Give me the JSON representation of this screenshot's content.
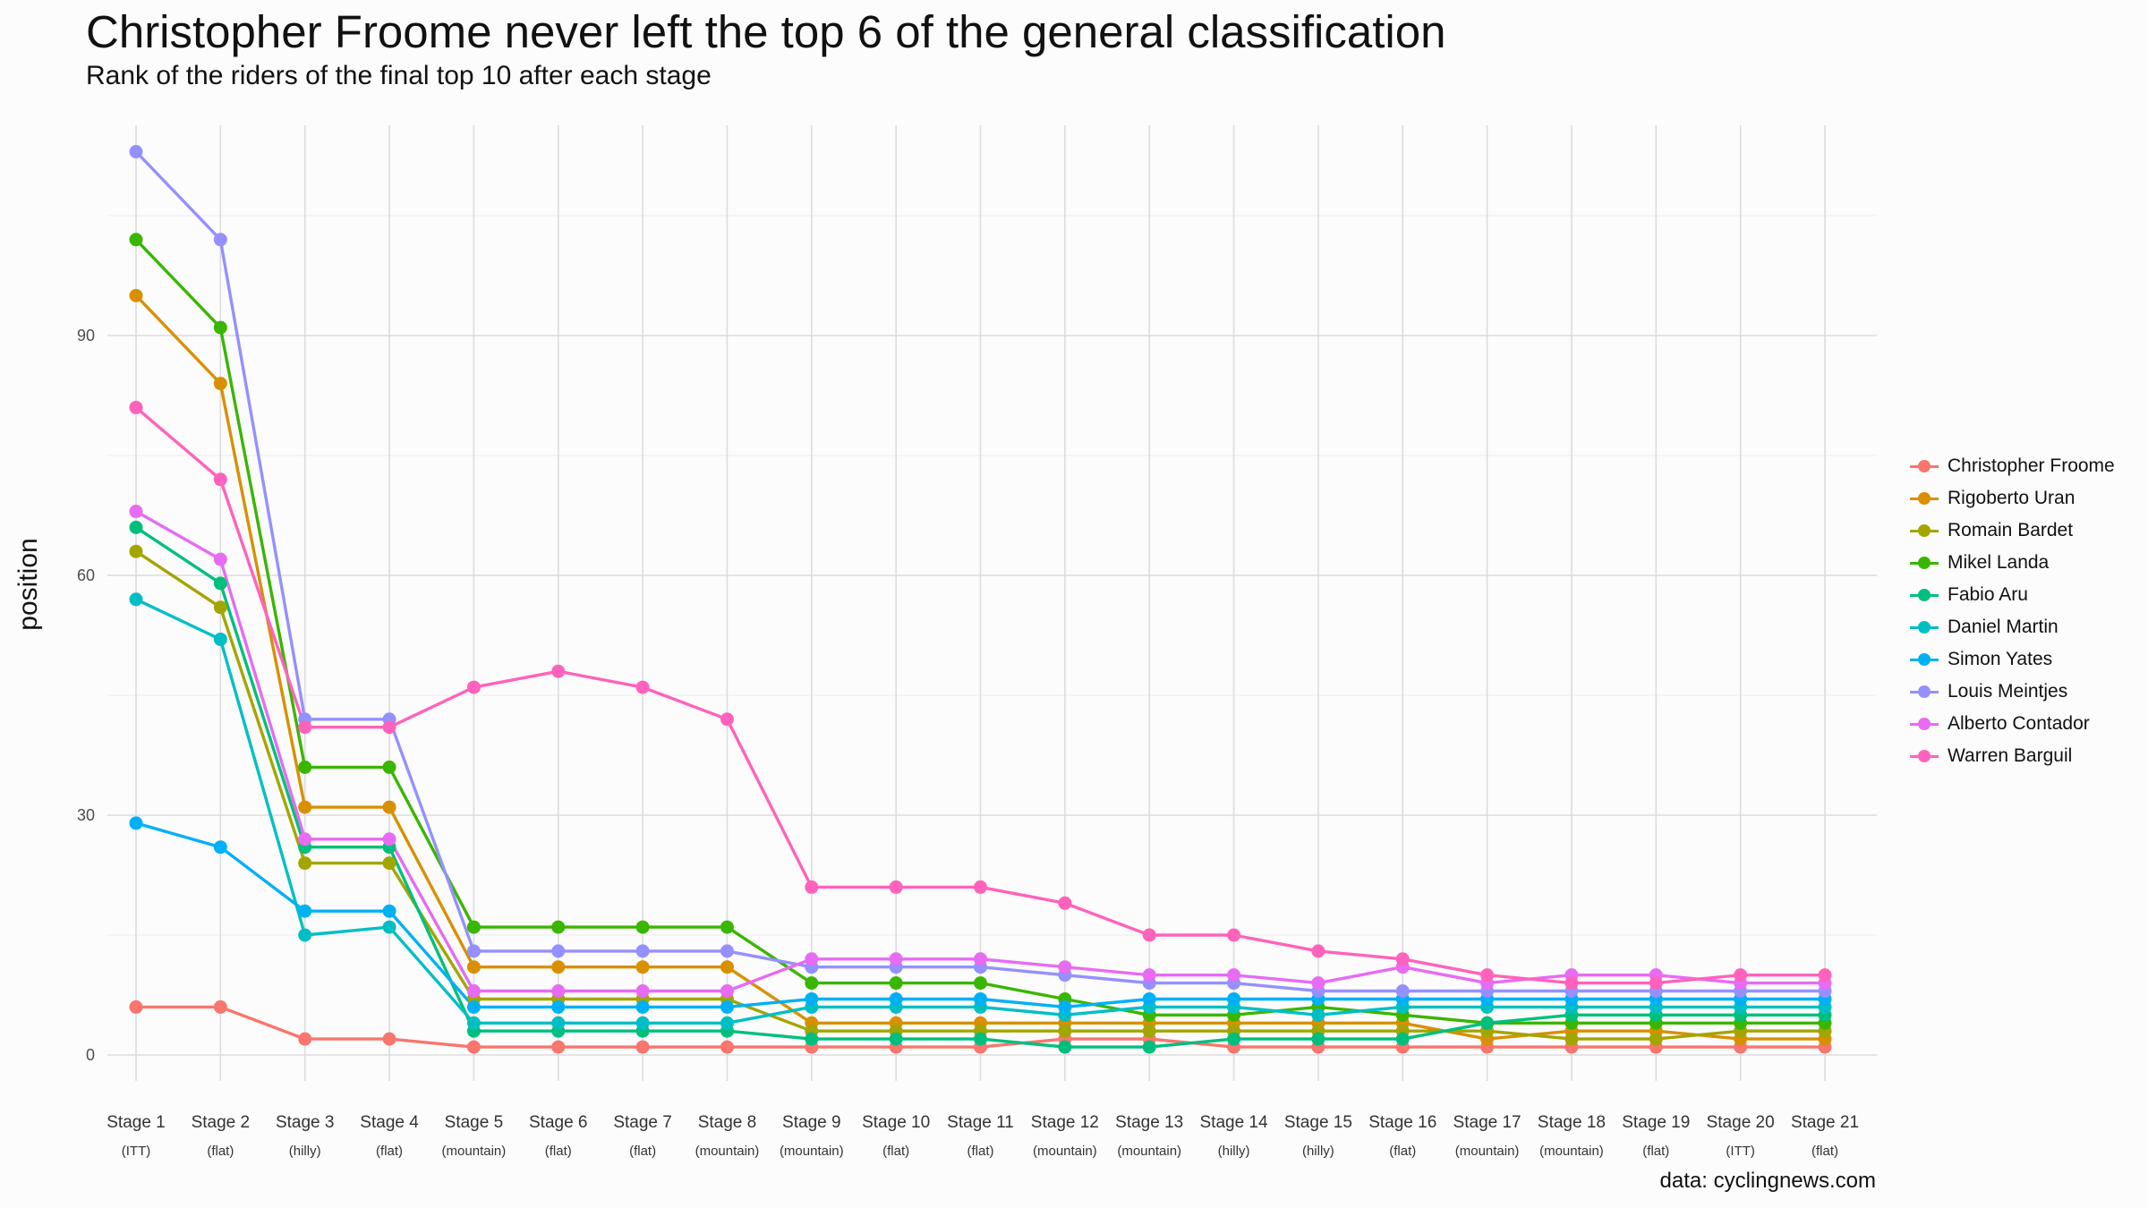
{
  "title": "Christopher Froome never left the top 6 of the general classification",
  "subtitle": "Rank of the riders of the final top 10 after each stage",
  "caption": "data: cyclingnews.com",
  "chart_data": {
    "type": "line",
    "title": "Christopher Froome never left the top 6 of the general classification",
    "subtitle": "Rank of the riders of the final top 10 after each stage",
    "xlabel": "",
    "ylabel": "position",
    "ylim": [
      0,
      113
    ],
    "yticks": [
      0,
      30,
      60,
      90
    ],
    "grid": true,
    "legend_position": "right",
    "categories": [
      "Stage 1",
      "Stage 2",
      "Stage 3",
      "Stage 4",
      "Stage 5",
      "Stage 6",
      "Stage 7",
      "Stage 8",
      "Stage 9",
      "Stage 10",
      "Stage 11",
      "Stage 12",
      "Stage 13",
      "Stage 14",
      "Stage 15",
      "Stage 16",
      "Stage 17",
      "Stage 18",
      "Stage 19",
      "Stage 20",
      "Stage 21"
    ],
    "stage_types": [
      "(ITT)",
      "(flat)",
      "(hilly)",
      "(flat)",
      "(mountain)",
      "(flat)",
      "(flat)",
      "(mountain)",
      "(mountain)",
      "(flat)",
      "(flat)",
      "(mountain)",
      "(mountain)",
      "(hilly)",
      "(hilly)",
      "(flat)",
      "(mountain)",
      "(mountain)",
      "(flat)",
      "(ITT)",
      "(flat)"
    ],
    "series": [
      {
        "name": "Christopher Froome",
        "color": "#F8766D",
        "values": [
          6,
          6,
          2,
          2,
          1,
          1,
          1,
          1,
          1,
          1,
          1,
          2,
          2,
          1,
          1,
          1,
          1,
          1,
          1,
          1,
          1
        ]
      },
      {
        "name": "Rigoberto Uran",
        "color": "#D89000",
        "values": [
          95,
          84,
          31,
          31,
          11,
          11,
          11,
          11,
          4,
          4,
          4,
          4,
          4,
          4,
          4,
          4,
          2,
          3,
          3,
          2,
          2
        ]
      },
      {
        "name": "Romain Bardet",
        "color": "#A3A500",
        "values": [
          63,
          56,
          24,
          24,
          7,
          7,
          7,
          7,
          3,
          3,
          3,
          3,
          3,
          3,
          3,
          3,
          3,
          2,
          2,
          3,
          3
        ]
      },
      {
        "name": "Mikel Landa",
        "color": "#39B600",
        "values": [
          102,
          91,
          36,
          36,
          16,
          16,
          16,
          16,
          9,
          9,
          9,
          7,
          5,
          5,
          6,
          5,
          4,
          4,
          4,
          4,
          4
        ]
      },
      {
        "name": "Fabio Aru",
        "color": "#00BF7D",
        "values": [
          66,
          59,
          26,
          26,
          3,
          3,
          3,
          3,
          2,
          2,
          2,
          1,
          1,
          2,
          2,
          2,
          4,
          5,
          5,
          5,
          5
        ]
      },
      {
        "name": "Daniel Martin",
        "color": "#00BFC4",
        "values": [
          57,
          52,
          15,
          16,
          4,
          4,
          4,
          4,
          6,
          6,
          6,
          5,
          6,
          6,
          5,
          6,
          6,
          6,
          6,
          6,
          6
        ]
      },
      {
        "name": "Simon Yates",
        "color": "#00B0F6",
        "values": [
          29,
          26,
          18,
          18,
          6,
          6,
          6,
          6,
          7,
          7,
          7,
          6,
          7,
          7,
          7,
          7,
          7,
          7,
          7,
          7,
          7
        ]
      },
      {
        "name": "Louis Meintjes",
        "color": "#9590FF",
        "values": [
          113,
          102,
          42,
          42,
          13,
          13,
          13,
          13,
          11,
          11,
          11,
          10,
          9,
          9,
          8,
          8,
          8,
          8,
          8,
          8,
          8
        ]
      },
      {
        "name": "Alberto Contador",
        "color": "#E76BF3",
        "values": [
          68,
          62,
          27,
          27,
          8,
          8,
          8,
          8,
          12,
          12,
          12,
          11,
          10,
          10,
          9,
          11,
          9,
          10,
          10,
          9,
          9
        ]
      },
      {
        "name": "Warren Barguil",
        "color": "#FF62BC",
        "values": [
          81,
          72,
          41,
          41,
          46,
          48,
          46,
          42,
          21,
          21,
          21,
          19,
          15,
          15,
          13,
          12,
          10,
          9,
          9,
          10,
          10
        ]
      }
    ]
  }
}
